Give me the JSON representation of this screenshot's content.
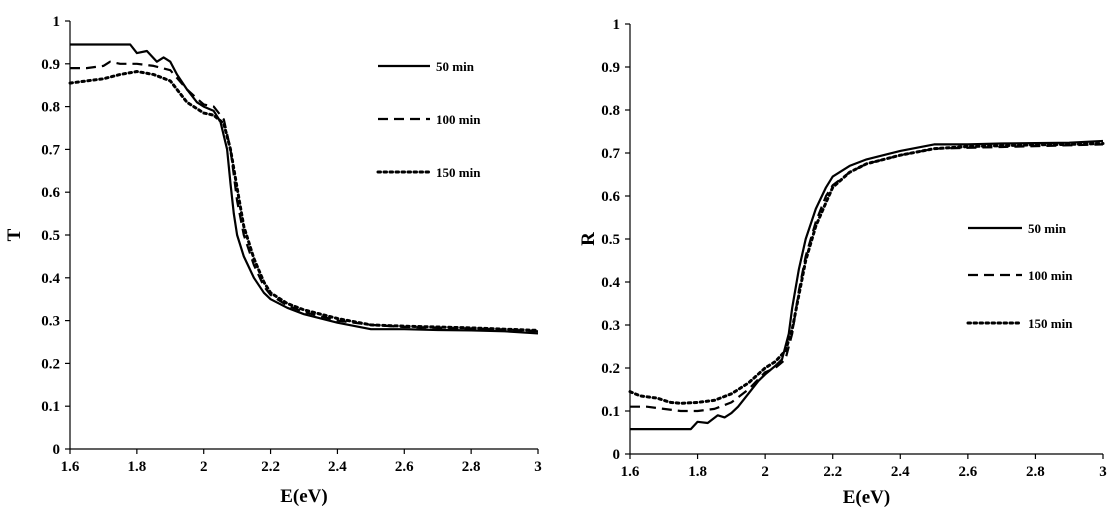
{
  "chart_data": [
    {
      "type": "line",
      "xlabel": "E(eV)",
      "ylabel": "T",
      "xlim": [
        1.6,
        3
      ],
      "ylim": [
        0,
        1
      ],
      "xticks": [
        "1.6",
        "1.8",
        "2",
        "2.2",
        "2.4",
        "2.6",
        "2.8",
        "3"
      ],
      "yticks": [
        "0",
        "0.1",
        "0.2",
        "0.3",
        "0.4",
        "0.5",
        "0.6",
        "0.7",
        "0.8",
        "0.9",
        "1"
      ],
      "grid": false,
      "legend_position": "top-right",
      "series": [
        {
          "name": "50 min",
          "style": "solid",
          "x": [
            1.6,
            1.7,
            1.78,
            1.8,
            1.83,
            1.86,
            1.88,
            1.9,
            1.92,
            1.95,
            1.98,
            2.0,
            2.03,
            2.05,
            2.07,
            2.08,
            2.09,
            2.1,
            2.12,
            2.15,
            2.18,
            2.2,
            2.25,
            2.3,
            2.4,
            2.5,
            2.6,
            2.7,
            2.8,
            2.9,
            3.0
          ],
          "y": [
            0.945,
            0.945,
            0.945,
            0.925,
            0.93,
            0.905,
            0.915,
            0.905,
            0.875,
            0.84,
            0.81,
            0.8,
            0.79,
            0.765,
            0.7,
            0.62,
            0.55,
            0.5,
            0.45,
            0.4,
            0.365,
            0.35,
            0.33,
            0.315,
            0.295,
            0.28,
            0.28,
            0.278,
            0.277,
            0.275,
            0.27
          ]
        },
        {
          "name": "100 min",
          "style": "dashed",
          "x": [
            1.6,
            1.65,
            1.7,
            1.72,
            1.75,
            1.8,
            1.85,
            1.9,
            1.95,
            2.0,
            2.03,
            2.06,
            2.08,
            2.1,
            2.12,
            2.15,
            2.18,
            2.2,
            2.25,
            2.3,
            2.4,
            2.5,
            2.6,
            2.7,
            2.8,
            2.9,
            3.0
          ],
          "y": [
            0.89,
            0.89,
            0.895,
            0.905,
            0.9,
            0.9,
            0.895,
            0.885,
            0.84,
            0.805,
            0.8,
            0.77,
            0.7,
            0.58,
            0.5,
            0.43,
            0.38,
            0.36,
            0.335,
            0.32,
            0.3,
            0.29,
            0.285,
            0.283,
            0.281,
            0.279,
            0.275
          ]
        },
        {
          "name": "150 min",
          "style": "dotted",
          "x": [
            1.6,
            1.65,
            1.7,
            1.75,
            1.8,
            1.85,
            1.9,
            1.95,
            2.0,
            2.03,
            2.06,
            2.08,
            2.1,
            2.12,
            2.15,
            2.18,
            2.2,
            2.25,
            2.3,
            2.4,
            2.5,
            2.6,
            2.7,
            2.8,
            2.9,
            3.0
          ],
          "y": [
            0.855,
            0.86,
            0.865,
            0.875,
            0.882,
            0.875,
            0.86,
            0.81,
            0.785,
            0.78,
            0.76,
            0.7,
            0.61,
            0.52,
            0.445,
            0.39,
            0.365,
            0.34,
            0.325,
            0.305,
            0.29,
            0.287,
            0.285,
            0.283,
            0.28,
            0.277
          ]
        }
      ]
    },
    {
      "type": "line",
      "xlabel": "E(eV)",
      "ylabel": "R",
      "xlim": [
        1.6,
        3
      ],
      "ylim": [
        0,
        1
      ],
      "xticks": [
        "1.6",
        "1.8",
        "2",
        "2.2",
        "2.4",
        "2.6",
        "2.8",
        "3"
      ],
      "yticks": [
        "0",
        "0.1",
        "0.2",
        "0.3",
        "0.4",
        "0.5",
        "0.6",
        "0.7",
        "0.8",
        "0.9",
        "1"
      ],
      "grid": false,
      "legend_position": "right",
      "series": [
        {
          "name": "50 min",
          "style": "solid",
          "x": [
            1.6,
            1.7,
            1.78,
            1.8,
            1.83,
            1.86,
            1.88,
            1.9,
            1.92,
            1.95,
            1.98,
            2.0,
            2.03,
            2.05,
            2.07,
            2.08,
            2.1,
            2.12,
            2.15,
            2.18,
            2.2,
            2.25,
            2.3,
            2.4,
            2.5,
            2.6,
            2.7,
            2.8,
            2.9,
            3.0
          ],
          "y": [
            0.058,
            0.058,
            0.058,
            0.075,
            0.072,
            0.09,
            0.085,
            0.095,
            0.11,
            0.14,
            0.17,
            0.185,
            0.205,
            0.22,
            0.28,
            0.34,
            0.43,
            0.5,
            0.57,
            0.62,
            0.645,
            0.67,
            0.685,
            0.705,
            0.72,
            0.72,
            0.722,
            0.723,
            0.724,
            0.728
          ]
        },
        {
          "name": "100 min",
          "style": "dashed",
          "x": [
            1.6,
            1.65,
            1.7,
            1.75,
            1.8,
            1.85,
            1.9,
            1.95,
            2.0,
            2.03,
            2.06,
            2.08,
            2.1,
            2.12,
            2.15,
            2.18,
            2.2,
            2.25,
            2.3,
            2.4,
            2.5,
            2.6,
            2.7,
            2.8,
            2.9,
            3.0
          ],
          "y": [
            0.11,
            0.11,
            0.105,
            0.1,
            0.1,
            0.105,
            0.12,
            0.15,
            0.19,
            0.2,
            0.22,
            0.28,
            0.38,
            0.46,
            0.54,
            0.6,
            0.625,
            0.655,
            0.675,
            0.695,
            0.71,
            0.712,
            0.714,
            0.716,
            0.718,
            0.72
          ]
        },
        {
          "name": "150 min",
          "style": "dotted",
          "x": [
            1.6,
            1.63,
            1.68,
            1.72,
            1.75,
            1.8,
            1.85,
            1.9,
            1.95,
            2.0,
            2.03,
            2.06,
            2.08,
            2.1,
            2.12,
            2.15,
            2.18,
            2.2,
            2.25,
            2.3,
            2.4,
            2.5,
            2.6,
            2.7,
            2.8,
            2.9,
            3.0
          ],
          "y": [
            0.145,
            0.135,
            0.13,
            0.12,
            0.118,
            0.12,
            0.125,
            0.14,
            0.165,
            0.2,
            0.215,
            0.24,
            0.29,
            0.37,
            0.45,
            0.53,
            0.585,
            0.62,
            0.655,
            0.675,
            0.695,
            0.71,
            0.715,
            0.717,
            0.719,
            0.72,
            0.722
          ]
        }
      ]
    }
  ]
}
